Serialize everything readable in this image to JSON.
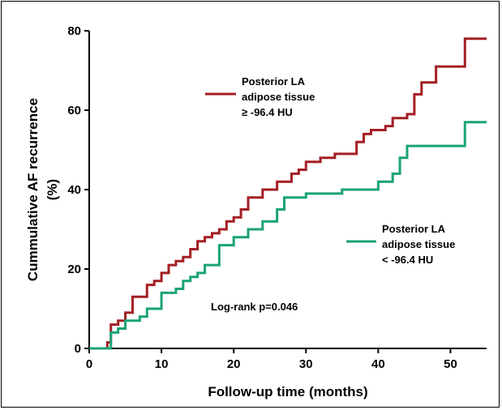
{
  "chart_data": {
    "type": "line",
    "step": true,
    "title": "",
    "xlabel": "Follow-up time (months)",
    "ylabel_lines": [
      "Cummulative AF recurrence",
      "(%)"
    ],
    "xlim": [
      0,
      55
    ],
    "ylim": [
      0,
      80
    ],
    "xticks": [
      0,
      10,
      20,
      30,
      40,
      50
    ],
    "yticks": [
      0,
      20,
      40,
      60,
      80
    ],
    "grid": false,
    "series": [
      {
        "name_lines": [
          "Posterior LA",
          "adipose tissue",
          "≥ -96.4 HU"
        ],
        "color": "#a31f24",
        "x": [
          0,
          2,
          2.5,
          3,
          4,
          5,
          6,
          8,
          9,
          10,
          11,
          12,
          13,
          14,
          15,
          16,
          17,
          18,
          19,
          20,
          21,
          22,
          24,
          26,
          28,
          29,
          30,
          32,
          34,
          37,
          38,
          39,
          41,
          42,
          44,
          45,
          46,
          48,
          52,
          55
        ],
        "y": [
          0,
          0,
          1.5,
          6,
          7,
          9,
          13,
          16,
          17,
          19,
          21,
          22,
          23,
          25,
          27,
          28,
          29,
          30,
          32,
          33,
          35,
          38,
          40,
          42,
          44,
          45,
          47,
          48,
          49,
          52,
          54,
          55,
          56,
          58,
          59,
          64,
          67,
          71,
          78,
          78
        ]
      },
      {
        "name_lines": [
          "Posterior LA",
          "adipose tissue",
          "< -96.4 HU"
        ],
        "color": "#1aa374",
        "x": [
          0,
          3,
          4,
          5,
          7,
          8,
          10,
          12,
          13,
          14,
          15,
          16,
          18,
          20,
          22,
          24,
          26,
          27,
          30,
          35,
          40,
          42,
          43,
          44,
          52,
          55
        ],
        "y": [
          0,
          4,
          5,
          7,
          8,
          10,
          14,
          15,
          17,
          18,
          19,
          21,
          26,
          28,
          30,
          32,
          35,
          38,
          39,
          40,
          42,
          44,
          48,
          51,
          57,
          57
        ]
      }
    ],
    "annotations": [
      "Log-rank p=0.046"
    ]
  }
}
